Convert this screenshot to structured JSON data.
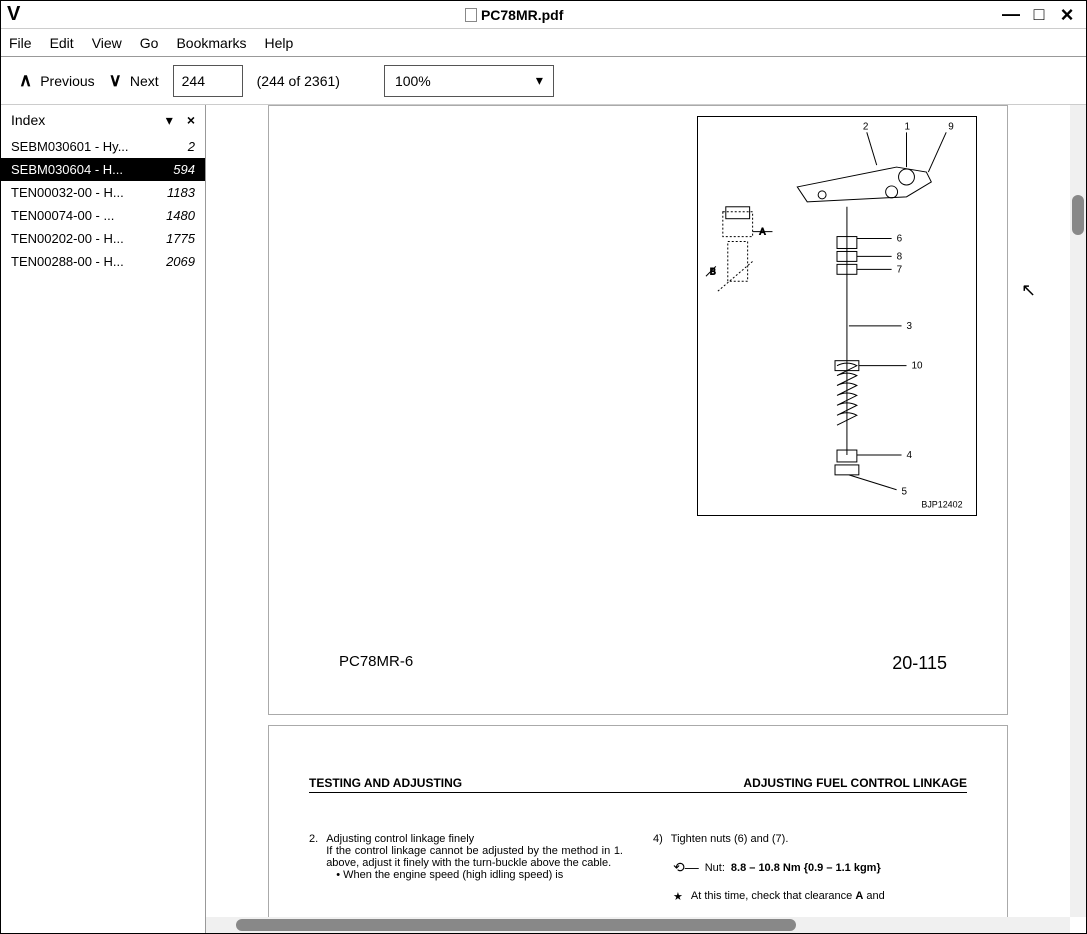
{
  "window": {
    "title": "PC78MR.pdf",
    "logo": "V"
  },
  "menubar": [
    "File",
    "Edit",
    "View",
    "Go",
    "Bookmarks",
    "Help"
  ],
  "toolbar": {
    "prev": "Previous",
    "next": "Next",
    "page_value": "244",
    "page_info": "(244 of 2361)",
    "zoom": "100%"
  },
  "sidebar": {
    "title": "Index",
    "items": [
      {
        "label": "SEBM030601 - Hy...",
        "page": "2",
        "selected": false
      },
      {
        "label": "SEBM030604 - H...",
        "page": "594",
        "selected": true
      },
      {
        "label": "TEN00032-00 - H...",
        "page": "1183",
        "selected": false
      },
      {
        "label": "TEN00074-00 - ...",
        "page": "1480",
        "selected": false
      },
      {
        "label": "TEN00202-00 - H...",
        "page": "1775",
        "selected": false
      },
      {
        "label": "TEN00288-00 - H...",
        "page": "2069",
        "selected": false
      }
    ]
  },
  "document": {
    "page1": {
      "diagram": {
        "code": "BJP12402",
        "callouts": [
          "1",
          "2",
          "3",
          "4",
          "5",
          "6",
          "7",
          "8",
          "9",
          "10"
        ],
        "callout_labels": {
          "A": "A",
          "B": "B"
        }
      },
      "footer_left": "PC78MR-6",
      "footer_right": "20-115"
    },
    "page2": {
      "header_left": "TESTING AND ADJUSTING",
      "header_right": "ADJUSTING FUEL CONTROL LINKAGE",
      "left_col": {
        "num": "2.",
        "title": "Adjusting control linkage finely",
        "body": "If the control linkage cannot be adjusted by the method in 1. above, adjust it finely with the turn-buckle above the cable.",
        "bullet": "• When the engine speed (high idling speed) is"
      },
      "right_col": {
        "num": "4)",
        "line1": "Tighten nuts (6) and (7).",
        "torque_label": "Nut:",
        "torque_value": "8.8 – 10.8 Nm {0.9 – 1.1 kgm}",
        "star": "★",
        "star_text": "At this time, check that clearance A and"
      }
    }
  },
  "colors": {
    "selection_bg": "#000000",
    "selection_fg": "#ffffff",
    "border": "#999999",
    "scrollbar_thumb": "#888888"
  }
}
